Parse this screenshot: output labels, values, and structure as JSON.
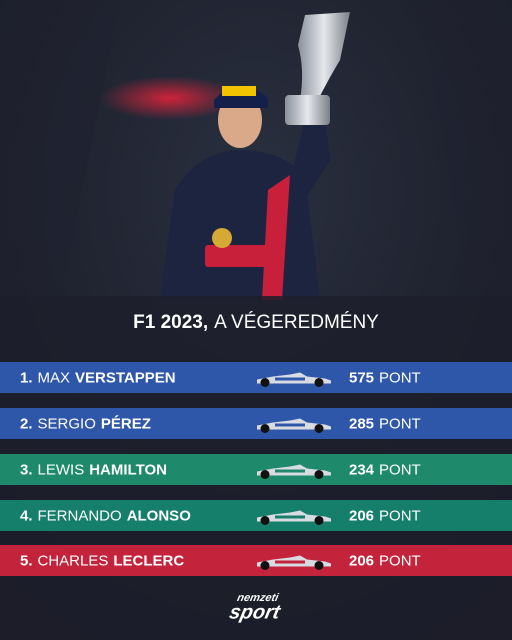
{
  "header": {
    "title_bold": "F1 2023,",
    "title_rest": "A VÉGEREDMÉNY"
  },
  "points_unit": "PONT",
  "rows": [
    {
      "rank": "1.",
      "first": "MAX",
      "last": "VERSTAPPEN",
      "points": 575,
      "color": "#2f57a9"
    },
    {
      "rank": "2.",
      "first": "SERGIO",
      "last": "PÉREZ",
      "points": 285,
      "color": "#2f57a9"
    },
    {
      "rank": "3.",
      "first": "LEWIS",
      "last": "HAMILTON",
      "points": 234,
      "color": "#1e8a6b"
    },
    {
      "rank": "4.",
      "first": "FERNANDO",
      "last": "ALONSO",
      "points": 206,
      "color": "#157f6c"
    },
    {
      "rank": "5.",
      "first": "CHARLES",
      "last": "LECLERC",
      "points": 206,
      "color": "#c4233c"
    }
  ],
  "logo": {
    "top": "nemzeti",
    "bottom": "sport"
  }
}
